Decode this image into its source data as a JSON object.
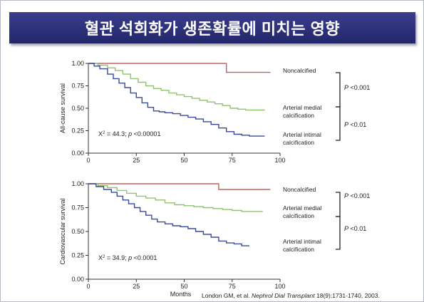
{
  "title": "혈관 석회화가 생존확률에 미치는 영향",
  "citation": {
    "prefix": "London GM, et al.",
    "journal": "Nephrol Dial Transplant",
    "rest": "18(9):1731-1740, 2003."
  },
  "colors": {
    "noncalcified": "#c0655e",
    "medial": "#8fc36f",
    "intimal": "#3a4a96",
    "axis": "#333333",
    "banner": "#2b2f78"
  },
  "chart_data": [
    {
      "type": "line",
      "ylabel": "All-cause survival",
      "xlabel": "",
      "xlim": [
        0,
        100
      ],
      "ylim": [
        0,
        1
      ],
      "xticks": [
        "0",
        "25",
        "50",
        "75",
        "100"
      ],
      "yticks": [
        "0.00",
        "0.25",
        "0.50",
        "0.75",
        "1.00"
      ],
      "stat": {
        "chi": "X",
        "sup": "2",
        "eq": "= 44.3;",
        "p": "p",
        "rest": "<0.00001"
      },
      "series": [
        {
          "name": "Noncalcified",
          "name2": "",
          "color_key": "noncalcified",
          "x": [
            0,
            72,
            72,
            95
          ],
          "y": [
            1.0,
            1.0,
            0.9,
            0.9
          ]
        },
        {
          "name": "Arterial medial",
          "name2": "calcification",
          "color_key": "medial",
          "x": [
            0,
            5,
            10,
            14,
            18,
            22,
            26,
            30,
            34,
            38,
            42,
            46,
            50,
            54,
            58,
            62,
            66,
            70,
            74,
            78,
            82,
            86,
            90,
            92
          ],
          "y": [
            1.0,
            0.98,
            0.95,
            0.92,
            0.88,
            0.83,
            0.79,
            0.75,
            0.72,
            0.7,
            0.67,
            0.65,
            0.63,
            0.61,
            0.59,
            0.57,
            0.55,
            0.53,
            0.5,
            0.49,
            0.48,
            0.48,
            0.48,
            0.48
          ]
        },
        {
          "name": "Arterial intimal",
          "name2": "calcification",
          "color_key": "intimal",
          "x": [
            0,
            3,
            6,
            10,
            13,
            16,
            19,
            22,
            25,
            28,
            31,
            34,
            37,
            40,
            44,
            48,
            52,
            56,
            60,
            64,
            68,
            72,
            76,
            80,
            84,
            88,
            92
          ],
          "y": [
            1.0,
            0.97,
            0.94,
            0.88,
            0.83,
            0.78,
            0.73,
            0.67,
            0.62,
            0.56,
            0.51,
            0.47,
            0.46,
            0.45,
            0.44,
            0.42,
            0.4,
            0.38,
            0.35,
            0.32,
            0.28,
            0.24,
            0.21,
            0.2,
            0.19,
            0.19,
            0.19
          ]
        }
      ],
      "comparisons": [
        {
          "label": "P",
          "value": "<0.001"
        },
        {
          "label": "P",
          "value": "<0.01"
        }
      ]
    },
    {
      "type": "line",
      "ylabel": "Cardiovascular survival",
      "xlabel": "Months",
      "xlim": [
        0,
        100
      ],
      "ylim": [
        0,
        1
      ],
      "xticks": [
        "0",
        "25",
        "50",
        "75",
        "100"
      ],
      "yticks": [
        "0.00",
        "0.25",
        "0.50",
        "0.75",
        "1.00"
      ],
      "stat": {
        "chi": "X",
        "sup": "2",
        "eq": "= 34.9;",
        "p": "p",
        "rest": "<0.0001"
      },
      "series": [
        {
          "name": "Noncalcified",
          "name2": "",
          "color_key": "noncalcified",
          "x": [
            0,
            68,
            68,
            95
          ],
          "y": [
            1.0,
            1.0,
            0.94,
            0.94
          ]
        },
        {
          "name": "Arterial medial",
          "name2": "calcification",
          "color_key": "medial",
          "x": [
            0,
            5,
            10,
            15,
            20,
            25,
            30,
            35,
            40,
            45,
            50,
            55,
            60,
            65,
            70,
            75,
            80,
            85,
            90,
            91
          ],
          "y": [
            1.0,
            0.98,
            0.96,
            0.93,
            0.9,
            0.87,
            0.85,
            0.83,
            0.8,
            0.78,
            0.77,
            0.76,
            0.75,
            0.74,
            0.73,
            0.72,
            0.71,
            0.71,
            0.71,
            0.71
          ]
        },
        {
          "name": "Arterial intimal",
          "name2": "calcification",
          "color_key": "intimal",
          "x": [
            0,
            4,
            8,
            12,
            15,
            18,
            21,
            24,
            27,
            30,
            33,
            36,
            40,
            44,
            48,
            52,
            56,
            60,
            64,
            68,
            72,
            76,
            80,
            84
          ],
          "y": [
            1.0,
            0.97,
            0.94,
            0.91,
            0.87,
            0.83,
            0.79,
            0.75,
            0.71,
            0.67,
            0.63,
            0.6,
            0.58,
            0.56,
            0.55,
            0.53,
            0.5,
            0.47,
            0.44,
            0.4,
            0.38,
            0.37,
            0.35,
            0.35
          ]
        }
      ],
      "comparisons": [
        {
          "label": "P",
          "value": "<0.001"
        },
        {
          "label": "P",
          "value": "<0.01"
        }
      ]
    }
  ]
}
